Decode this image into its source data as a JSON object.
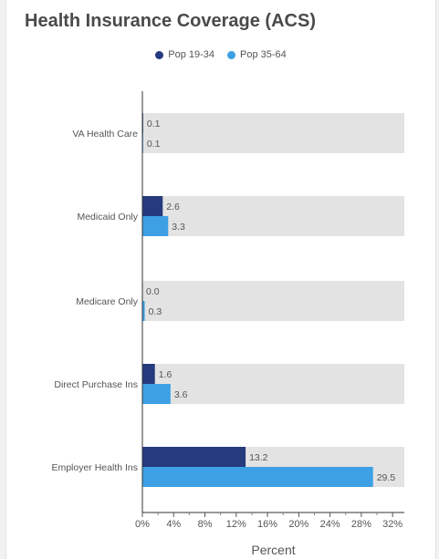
{
  "chart_data": {
    "type": "bar",
    "orientation": "horizontal",
    "title": "Health Insurance Coverage (ACS)",
    "xlabel": "Percent",
    "ylabel": "",
    "categories": [
      "VA Health Care",
      "Medicaid Only",
      "Medicare Only",
      "Direct Purchase Ins",
      "Employer Health Ins"
    ],
    "series": [
      {
        "name": "Pop 19-34",
        "color": "#263a7e",
        "values": [
          0.1,
          2.6,
          0.0,
          1.6,
          13.2
        ],
        "labels": [
          "0.1",
          "2.6",
          "0.0",
          "1.6",
          "13.2"
        ]
      },
      {
        "name": "Pop 35-64",
        "color": "#3ea0e4",
        "values": [
          0.1,
          3.3,
          0.3,
          3.6,
          29.5
        ],
        "labels": [
          "0.1",
          "3.3",
          "0.3",
          "3.6",
          "29.5"
        ]
      }
    ],
    "xlim": [
      0,
      33.5
    ],
    "xticks": [
      0,
      4,
      8,
      12,
      16,
      20,
      24,
      28,
      32
    ],
    "xtick_labels": [
      "0%",
      "4%",
      "8%",
      "12%",
      "16%",
      "20%",
      "24%",
      "28%",
      "32%"
    ],
    "background_bar_color": "#e3e3e3",
    "legend_position": "top-center",
    "grid": false
  }
}
